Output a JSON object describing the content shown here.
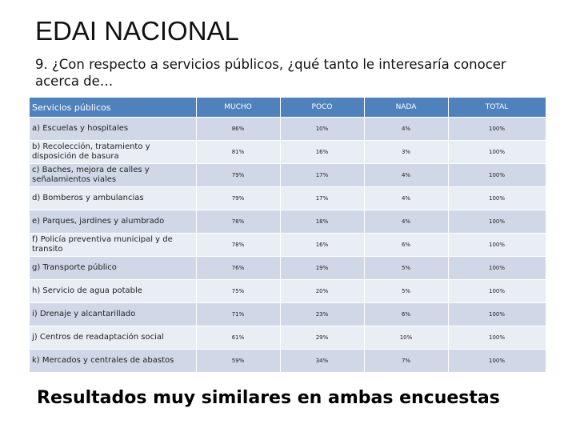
{
  "title": "EDAI NACIONAL",
  "subtitle": "9. ¿Con respecto a servicios públicos, ¿qué tanto le interesaría conocer acerca de…",
  "table": {
    "header": [
      "Servicios públicos",
      "MUCHO",
      "POCO",
      "NADA",
      "TOTAL"
    ],
    "rows": [
      [
        "a) Escuelas y hospitales",
        "86%",
        "10%",
        "4%",
        "100%"
      ],
      [
        "b) Recolección, tratamiento y disposición de basura",
        "81%",
        "16%",
        "3%",
        "100%"
      ],
      [
        "c) Baches, mejora de calles y señalamientos viales",
        "79%",
        "17%",
        "4%",
        "100%"
      ],
      [
        "d) Bomberos y ambulancias",
        "79%",
        "17%",
        "4%",
        "100%"
      ],
      [
        "e) Parques, jardines y alumbrado",
        "78%",
        "18%",
        "4%",
        "100%"
      ],
      [
        "f) Policía preventiva municipal y de transito",
        "78%",
        "16%",
        "6%",
        "100%"
      ],
      [
        "g) Transporte público",
        "76%",
        "19%",
        "5%",
        "100%"
      ],
      [
        "h) Servicio de agua potable",
        "75%",
        "20%",
        "5%",
        "100%"
      ],
      [
        "i) Drenaje y alcantarillado",
        "71%",
        "23%",
        "6%",
        "100%"
      ],
      [
        "j) Centros de readaptación social",
        "61%",
        "29%",
        "10%",
        "100%"
      ],
      [
        "k) Mercados y centrales de abastos",
        "59%",
        "34%",
        "7%",
        "100%"
      ]
    ]
  },
  "footer": "Resultados muy similares en ambas encuestas"
}
